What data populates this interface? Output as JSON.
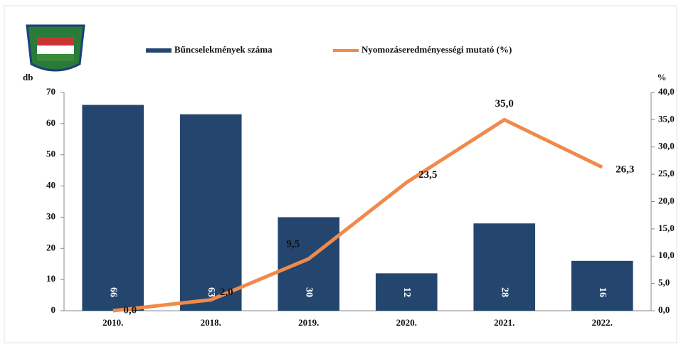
{
  "chart_data": {
    "type": "bar-line",
    "y_label": "db",
    "y2_label": "%",
    "categories": [
      "2010.",
      "2018.",
      "2019.",
      "2020.",
      "2021.",
      "2022."
    ],
    "series": [
      {
        "name": "Bűncselekmények száma",
        "type": "bar",
        "color": "#24466e",
        "values": [
          66,
          63,
          30,
          12,
          28,
          16
        ]
      },
      {
        "name": "Nyomozáseredményességi mutató (%)",
        "type": "line",
        "axis": "y2",
        "color": "#f08a4b",
        "values": [
          0,
          2,
          9.5,
          23.5,
          35,
          26.3
        ],
        "value_labels": [
          "0,0",
          "2,0",
          "9,5",
          "23,5",
          "35,0",
          "26,3"
        ]
      }
    ],
    "ylim": [
      0,
      70
    ],
    "yticks": [
      0,
      10,
      20,
      30,
      40,
      50,
      60,
      70
    ],
    "y2lim": [
      0,
      40
    ],
    "y2ticks": [
      {
        "value": 0,
        "label": "0,0"
      },
      {
        "value": 5,
        "label": "5,0"
      },
      {
        "value": 10,
        "label": "10,0"
      },
      {
        "value": 15,
        "label": "15,0"
      },
      {
        "value": 20,
        "label": "20,0"
      },
      {
        "value": 25,
        "label": "25,0"
      },
      {
        "value": 30,
        "label": "30,0"
      },
      {
        "value": 35,
        "label": "35,0"
      },
      {
        "value": 40,
        "label": "40,0"
      }
    ],
    "grid": false
  }
}
